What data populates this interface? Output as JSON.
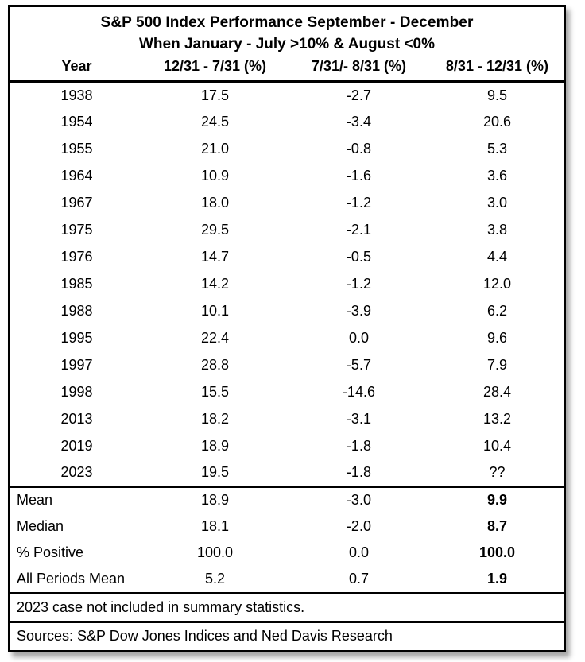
{
  "table": {
    "title": "S&P 500 Index Performance September - December",
    "subtitle": "When January - July >10% & August <0%",
    "headers": [
      "Year",
      "12/31 - 7/31 (%)",
      "7/31/- 8/31 (%)",
      "8/31 - 12/31 (%)"
    ],
    "rows": [
      {
        "year": "1938",
        "values": [
          "17.5",
          "-2.7",
          "9.5"
        ]
      },
      {
        "year": "1954",
        "values": [
          "24.5",
          "-3.4",
          "20.6"
        ]
      },
      {
        "year": "1955",
        "values": [
          "21.0",
          "-0.8",
          "5.3"
        ]
      },
      {
        "year": "1964",
        "values": [
          "10.9",
          "-1.6",
          "3.6"
        ]
      },
      {
        "year": "1967",
        "values": [
          "18.0",
          "-1.2",
          "3.0"
        ]
      },
      {
        "year": "1975",
        "values": [
          "29.5",
          "-2.1",
          "3.8"
        ]
      },
      {
        "year": "1976",
        "values": [
          "14.7",
          "-0.5",
          "4.4"
        ]
      },
      {
        "year": "1985",
        "values": [
          "14.2",
          "-1.2",
          "12.0"
        ]
      },
      {
        "year": "1988",
        "values": [
          "10.1",
          "-3.9",
          "6.2"
        ]
      },
      {
        "year": "1995",
        "values": [
          "22.4",
          "0.0",
          "9.6"
        ]
      },
      {
        "year": "1997",
        "values": [
          "28.8",
          "-5.7",
          "7.9"
        ]
      },
      {
        "year": "1998",
        "values": [
          "15.5",
          "-14.6",
          "28.4"
        ]
      },
      {
        "year": "2013",
        "values": [
          "18.2",
          "-3.1",
          "13.2"
        ]
      },
      {
        "year": "2019",
        "values": [
          "18.9",
          "-1.8",
          "10.4"
        ]
      },
      {
        "year": "2023",
        "values": [
          "19.5",
          "-1.8",
          "??"
        ]
      }
    ],
    "summary": [
      {
        "label": "Mean",
        "values": [
          "18.9",
          "-3.0",
          "9.9"
        ]
      },
      {
        "label": "Median",
        "values": [
          "18.1",
          "-2.0",
          "8.7"
        ]
      },
      {
        "label": "% Positive",
        "values": [
          "100.0",
          "0.0",
          "100.0"
        ]
      },
      {
        "label": "All Periods Mean",
        "values": [
          "5.2",
          "0.7",
          "1.9"
        ]
      }
    ],
    "notes": [
      "2023 case not included in summary statistics.",
      "Sources: S&P Dow Jones Indices and Ned Davis Research"
    ]
  },
  "chart_data": {
    "type": "table",
    "title": "S&P 500 Index Performance September - December",
    "subtitle": "When January - July >10% & August <0%",
    "columns": [
      "Year",
      "12/31 - 7/31 (%)",
      "7/31/- 8/31 (%)",
      "8/31 - 12/31 (%)"
    ],
    "rows": [
      [
        1938,
        17.5,
        -2.7,
        9.5
      ],
      [
        1954,
        24.5,
        -3.4,
        20.6
      ],
      [
        1955,
        21.0,
        -0.8,
        5.3
      ],
      [
        1964,
        10.9,
        -1.6,
        3.6
      ],
      [
        1967,
        18.0,
        -1.2,
        3.0
      ],
      [
        1975,
        29.5,
        -2.1,
        3.8
      ],
      [
        1976,
        14.7,
        -0.5,
        4.4
      ],
      [
        1985,
        14.2,
        -1.2,
        12.0
      ],
      [
        1988,
        10.1,
        -3.9,
        6.2
      ],
      [
        1995,
        22.4,
        0.0,
        9.6
      ],
      [
        1997,
        28.8,
        -5.7,
        7.9
      ],
      [
        1998,
        15.5,
        -14.6,
        28.4
      ],
      [
        2013,
        18.2,
        -3.1,
        13.2
      ],
      [
        2019,
        18.9,
        -1.8,
        10.4
      ],
      [
        2023,
        19.5,
        -1.8,
        "??"
      ]
    ],
    "summary_rows": [
      [
        "Mean",
        18.9,
        -3.0,
        9.9
      ],
      [
        "Median",
        18.1,
        -2.0,
        8.7
      ],
      [
        "% Positive",
        100.0,
        0.0,
        100.0
      ],
      [
        "All Periods Mean",
        5.2,
        0.7,
        1.9
      ]
    ],
    "notes": [
      "2023 case not included in summary statistics.",
      "Sources: S&P Dow Jones Indices and Ned Davis Research"
    ]
  }
}
